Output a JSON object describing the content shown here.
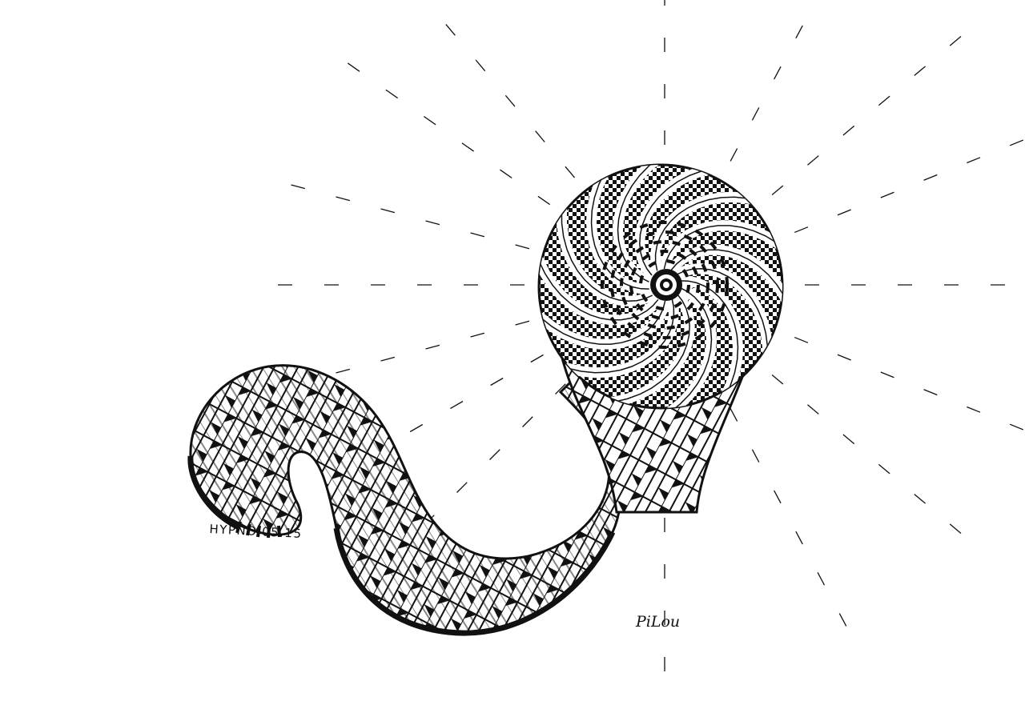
{
  "artwork": {
    "ink": "#111111",
    "paper": "#ffffff",
    "title": "HYPNO.05.15",
    "signature": "PiLou"
  }
}
